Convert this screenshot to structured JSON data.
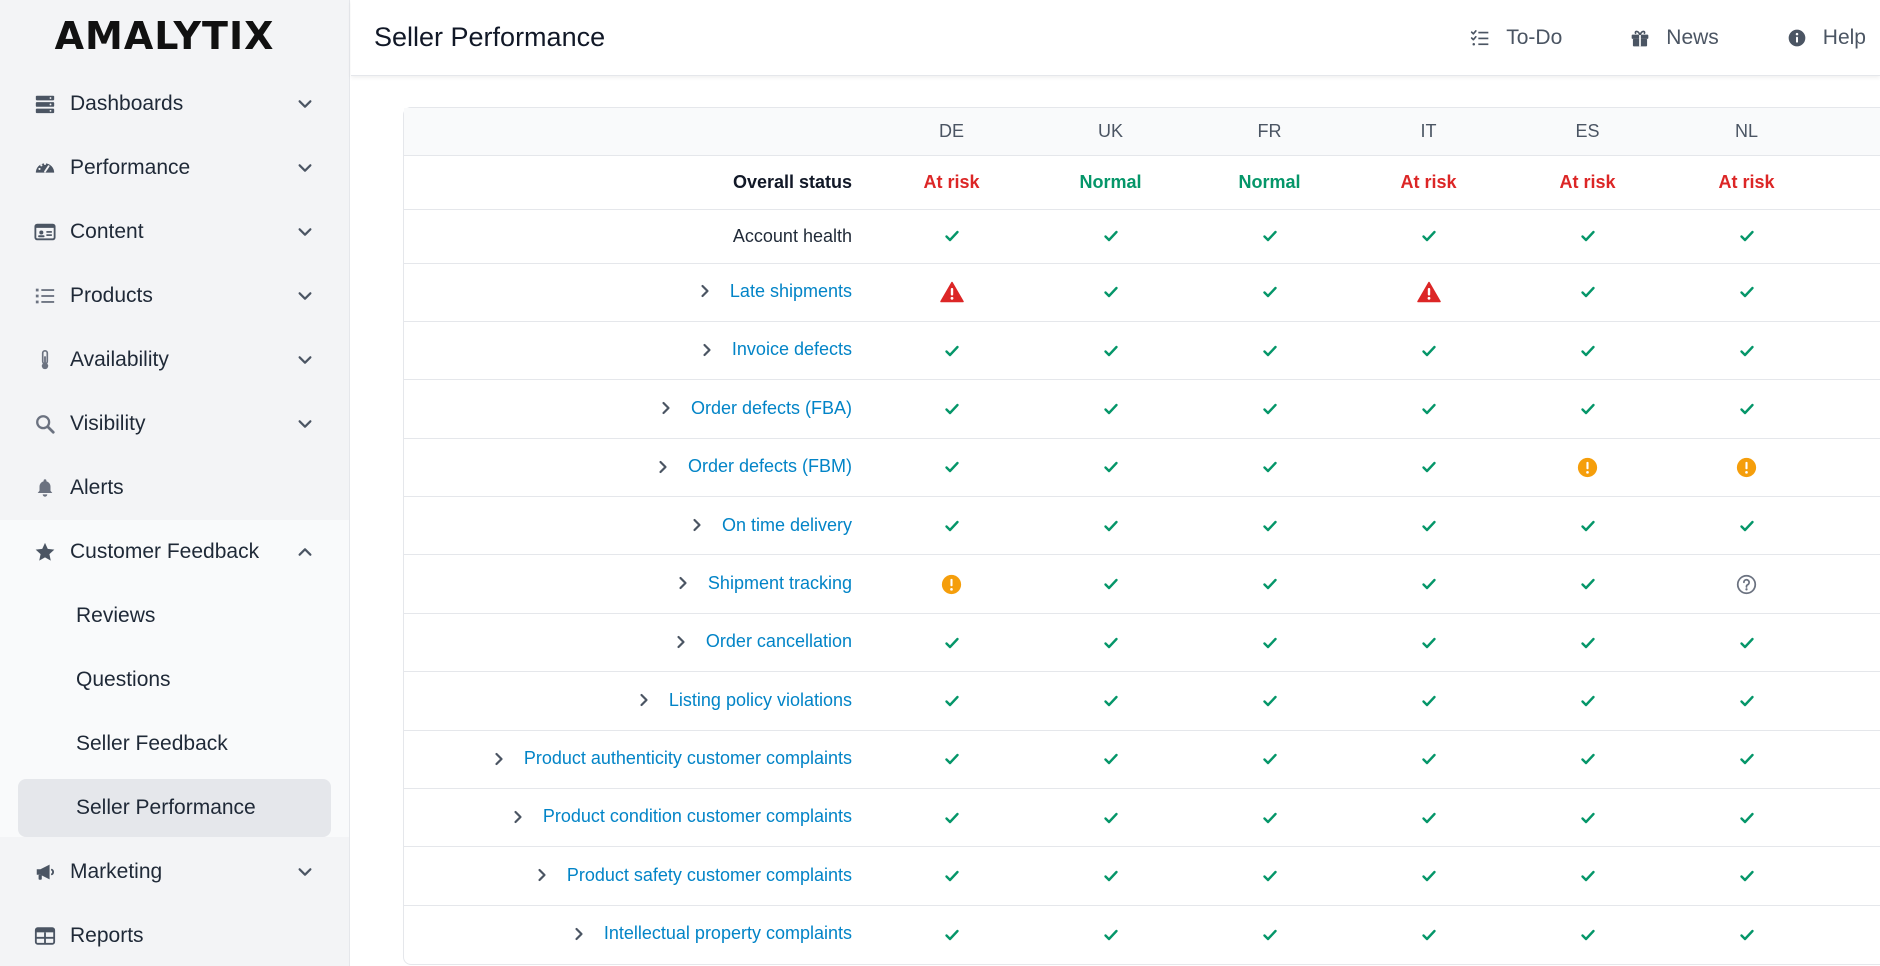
{
  "app": {
    "logo_text": "AMALYTIX"
  },
  "sidebar": {
    "items": [
      {
        "id": "dashboards",
        "label": "Dashboards",
        "icon": "server-icon",
        "chevron": "down"
      },
      {
        "id": "performance",
        "label": "Performance",
        "icon": "gauge-icon",
        "chevron": "down"
      },
      {
        "id": "content",
        "label": "Content",
        "icon": "id-card-icon",
        "chevron": "down"
      },
      {
        "id": "products",
        "label": "Products",
        "icon": "list-icon",
        "chevron": "down"
      },
      {
        "id": "availability",
        "label": "Availability",
        "icon": "thermometer-icon",
        "chevron": "down"
      },
      {
        "id": "visibility",
        "label": "Visibility",
        "icon": "search-icon",
        "chevron": "down"
      },
      {
        "id": "alerts",
        "label": "Alerts",
        "icon": "bell-icon",
        "chevron": ""
      }
    ],
    "open_group": {
      "label": "Customer Feedback",
      "icon": "star-icon",
      "chevron": "up",
      "children": [
        {
          "label": "Reviews",
          "active": false
        },
        {
          "label": "Questions",
          "active": false
        },
        {
          "label": "Seller Feedback",
          "active": false
        },
        {
          "label": "Seller Performance",
          "active": true
        }
      ]
    },
    "after_items": [
      {
        "id": "marketing",
        "label": "Marketing",
        "icon": "megaphone-icon",
        "chevron": "down"
      },
      {
        "id": "reports",
        "label": "Reports",
        "icon": "table-icon",
        "chevron": ""
      }
    ]
  },
  "header": {
    "title": "Seller Performance",
    "actions": [
      {
        "label": "To-Do",
        "icon": "checklist-icon"
      },
      {
        "label": "News",
        "icon": "gift-icon"
      },
      {
        "label": "Help",
        "icon": "info-circle-icon"
      }
    ]
  },
  "colors": {
    "ok": "#059669",
    "danger": "#dc2626",
    "warning": "#f59e0b",
    "unknown": "#6b7280",
    "link": "#0284c7"
  },
  "table": {
    "countries": [
      "DE",
      "UK",
      "FR",
      "IT",
      "ES",
      "NL"
    ],
    "overall": {
      "label": "Overall status",
      "values": [
        "At risk",
        "Normal",
        "Normal",
        "At risk",
        "At risk",
        "At risk"
      ]
    },
    "health": {
      "label": "Account health",
      "values": [
        "ok",
        "ok",
        "ok",
        "ok",
        "ok",
        "ok"
      ]
    },
    "metrics": [
      {
        "label": "Late shipments",
        "values": [
          "danger",
          "ok",
          "ok",
          "danger",
          "ok",
          "ok"
        ]
      },
      {
        "label": "Invoice defects",
        "values": [
          "ok",
          "ok",
          "ok",
          "ok",
          "ok",
          "ok"
        ]
      },
      {
        "label": "Order defects (FBA)",
        "values": [
          "ok",
          "ok",
          "ok",
          "ok",
          "ok",
          "ok"
        ]
      },
      {
        "label": "Order defects (FBM)",
        "values": [
          "ok",
          "ok",
          "ok",
          "ok",
          "warning",
          "warning"
        ]
      },
      {
        "label": "On time delivery",
        "values": [
          "ok",
          "ok",
          "ok",
          "ok",
          "ok",
          "ok"
        ]
      },
      {
        "label": "Shipment tracking",
        "values": [
          "warning",
          "ok",
          "ok",
          "ok",
          "ok",
          "unknown"
        ]
      },
      {
        "label": "Order cancellation",
        "values": [
          "ok",
          "ok",
          "ok",
          "ok",
          "ok",
          "ok"
        ]
      },
      {
        "label": "Listing policy violations",
        "values": [
          "ok",
          "ok",
          "ok",
          "ok",
          "ok",
          "ok"
        ]
      },
      {
        "label": "Product authenticity customer complaints",
        "values": [
          "ok",
          "ok",
          "ok",
          "ok",
          "ok",
          "ok"
        ]
      },
      {
        "label": "Product condition customer complaints",
        "values": [
          "ok",
          "ok",
          "ok",
          "ok",
          "ok",
          "ok"
        ]
      },
      {
        "label": "Product safety customer complaints",
        "values": [
          "ok",
          "ok",
          "ok",
          "ok",
          "ok",
          "ok"
        ]
      },
      {
        "label": "Intellectual property complaints",
        "values": [
          "ok",
          "ok",
          "ok",
          "ok",
          "ok",
          "ok"
        ]
      }
    ]
  }
}
